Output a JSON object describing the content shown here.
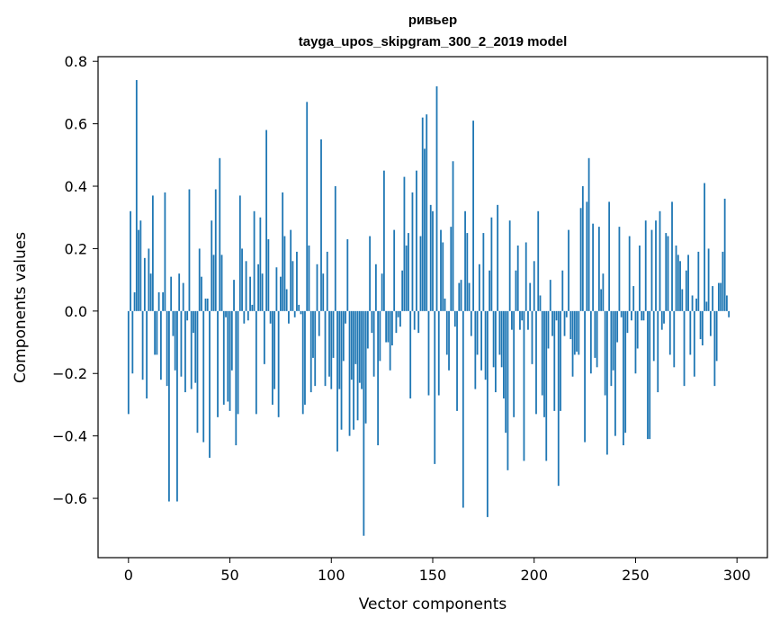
{
  "chart_data": {
    "type": "bar",
    "title_lines": [
      "ривьер",
      "tayga_upos_skipgram_300_2_2019 model"
    ],
    "xlabel": "Vector components",
    "ylabel": "Components values",
    "xlim": [
      -15,
      315
    ],
    "ylim": [
      -0.79,
      0.815
    ],
    "x_ticks": [
      0,
      50,
      100,
      150,
      200,
      250,
      300
    ],
    "y_ticks": [
      -0.6,
      -0.4,
      -0.2,
      0.0,
      0.2,
      0.4,
      0.6,
      0.8
    ],
    "y_tick_labels": [
      "−0.6",
      "−0.4",
      "−0.2",
      "0.0",
      "0.2",
      "0.4",
      "0.6",
      "0.8"
    ],
    "bar_color": "#1f77b4",
    "grid": false,
    "values": [
      -0.33,
      0.32,
      -0.2,
      0.06,
      0.74,
      0.26,
      0.29,
      -0.22,
      0.17,
      -0.28,
      0.2,
      0.12,
      0.37,
      -0.14,
      -0.14,
      0.06,
      -0.22,
      0.06,
      0.38,
      -0.24,
      -0.61,
      0.11,
      -0.08,
      -0.19,
      -0.61,
      0.12,
      -0.21,
      0.09,
      -0.26,
      -0.03,
      0.39,
      -0.25,
      -0.07,
      -0.23,
      -0.39,
      0.2,
      0.11,
      -0.42,
      0.04,
      0.04,
      -0.47,
      0.29,
      0.18,
      0.39,
      -0.34,
      0.49,
      0.18,
      -0.3,
      -0.02,
      -0.29,
      -0.32,
      -0.19,
      0.1,
      -0.43,
      -0.33,
      0.37,
      0.2,
      -0.04,
      0.16,
      -0.03,
      0.11,
      0.02,
      0.32,
      -0.33,
      0.15,
      0.3,
      0.12,
      -0.17,
      0.58,
      0.23,
      -0.04,
      -0.3,
      -0.25,
      0.14,
      -0.34,
      0.11,
      0.38,
      0.24,
      0.07,
      -0.04,
      0.26,
      0.16,
      -0.02,
      0.19,
      0.02,
      -0.01,
      -0.33,
      -0.3,
      0.67,
      0.21,
      -0.26,
      -0.15,
      -0.24,
      0.15,
      -0.08,
      0.55,
      0.12,
      -0.24,
      0.19,
      -0.21,
      -0.25,
      -0.15,
      0.4,
      -0.45,
      -0.25,
      -0.38,
      -0.16,
      -0.04,
      0.23,
      -0.4,
      -0.22,
      -0.38,
      -0.17,
      -0.35,
      -0.23,
      -0.25,
      -0.72,
      -0.36,
      -0.12,
      0.24,
      -0.07,
      -0.21,
      0.15,
      -0.43,
      -0.16,
      0.12,
      0.45,
      -0.1,
      -0.1,
      -0.19,
      -0.11,
      0.26,
      -0.07,
      -0.02,
      -0.05,
      0.13,
      0.43,
      0.21,
      0.25,
      -0.28,
      0.38,
      -0.06,
      0.45,
      -0.07,
      0.24,
      0.62,
      0.52,
      0.63,
      -0.27,
      0.34,
      0.32,
      -0.49,
      0.72,
      -0.27,
      0.26,
      0.22,
      0.04,
      -0.14,
      -0.19,
      0.27,
      0.48,
      -0.05,
      -0.32,
      0.09,
      0.1,
      -0.63,
      0.32,
      0.25,
      0.09,
      -0.08,
      0.61,
      -0.25,
      -0.14,
      0.15,
      -0.19,
      0.25,
      -0.22,
      -0.66,
      0.13,
      0.3,
      -0.18,
      -0.26,
      0.34,
      -0.14,
      -0.18,
      -0.28,
      -0.39,
      -0.51,
      0.29,
      -0.06,
      -0.34,
      0.13,
      0.21,
      -0.06,
      -0.03,
      -0.48,
      0.22,
      -0.06,
      0.09,
      -0.17,
      0.16,
      -0.33,
      0.32,
      0.05,
      -0.27,
      -0.34,
      -0.48,
      -0.12,
      0.1,
      -0.08,
      -0.32,
      -0.03,
      -0.56,
      -0.32,
      0.13,
      -0.08,
      -0.02,
      0.26,
      -0.09,
      -0.21,
      -0.14,
      -0.13,
      -0.14,
      0.33,
      0.4,
      -0.42,
      0.35,
      0.49,
      -0.2,
      0.28,
      -0.15,
      -0.18,
      0.27,
      0.07,
      0.12,
      -0.27,
      -0.46,
      0.35,
      -0.24,
      -0.19,
      -0.4,
      -0.1,
      0.27,
      -0.02,
      -0.43,
      -0.39,
      -0.07,
      0.24,
      -0.03,
      0.08,
      -0.2,
      -0.12,
      0.21,
      -0.03,
      -0.03,
      0.29,
      -0.41,
      -0.41,
      0.26,
      -0.16,
      0.29,
      -0.26,
      0.32,
      -0.06,
      -0.04,
      0.25,
      0.24,
      -0.14,
      0.35,
      -0.18,
      0.21,
      0.18,
      0.16,
      0.07,
      -0.24,
      0.13,
      0.18,
      -0.14,
      0.05,
      -0.21,
      0.04,
      0.19,
      -0.09,
      -0.11,
      0.41,
      0.03,
      0.2,
      -0.08,
      0.08,
      -0.24,
      -0.16,
      0.09,
      0.09,
      0.19,
      0.36,
      0.05,
      -0.02
    ]
  }
}
